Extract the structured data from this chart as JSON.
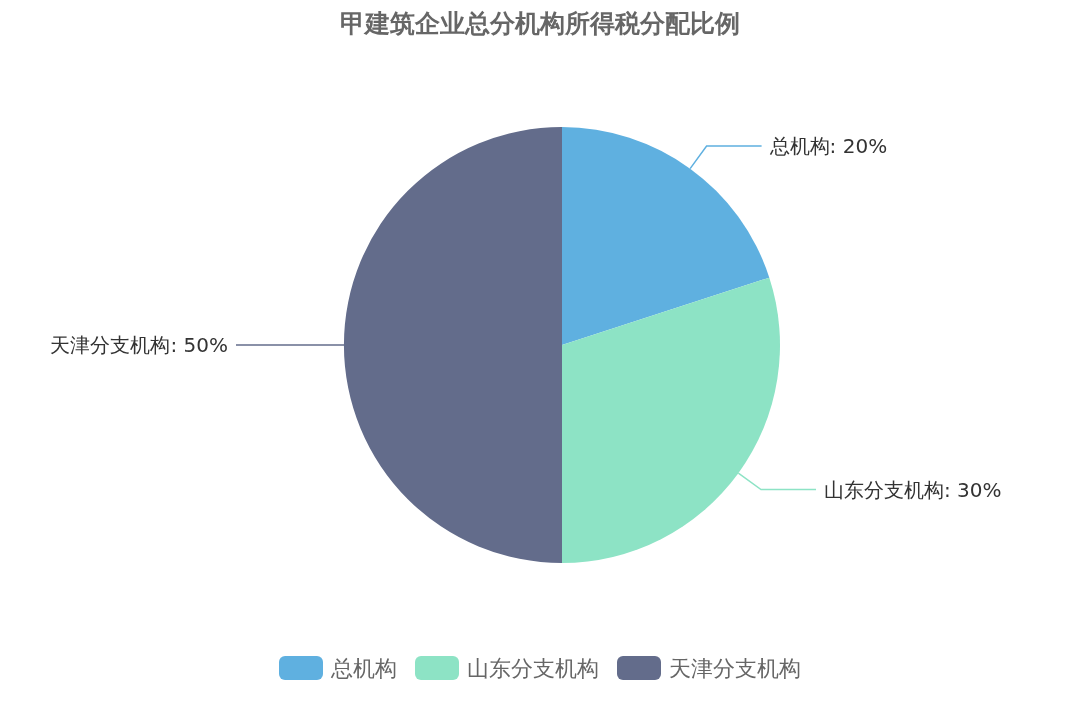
{
  "chart_data": {
    "type": "pie",
    "title": "甲建筑企业总分机构所得税分配比例",
    "categories": [
      "总机构",
      "山东分支机构",
      "天津分支机构"
    ],
    "values": [
      20,
      30,
      50
    ],
    "colors": [
      "#5fb0e0",
      "#8de3c5",
      "#636c8b"
    ],
    "value_labels": [
      "总机构: 20%",
      "山东分支机构: 30%",
      "天津分支机构: 50%"
    ],
    "legend": "bottom"
  }
}
